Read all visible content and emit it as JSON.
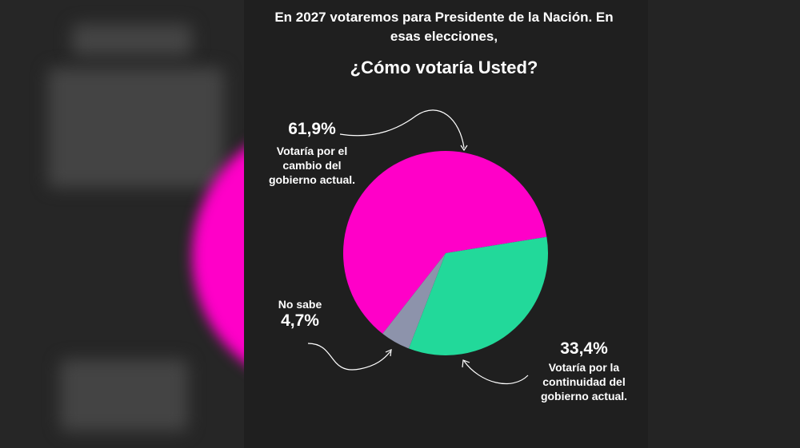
{
  "chart_data": {
    "type": "pie",
    "title": "En 2027 votaremos para Presidente de la Nación. En esas elecciones,",
    "subtitle": "¿Cómo votaría Usted?",
    "categories": [
      "Votaría por el cambio del gobierno actual.",
      "Votaría por la continuidad del gobierno actual.",
      "No sabe"
    ],
    "values": [
      61.9,
      33.4,
      4.7
    ],
    "value_labels": [
      "61,9%",
      "33,4%",
      "4,7%"
    ],
    "colors": [
      "#ff00c8",
      "#22d99a",
      "#8d93ab"
    ]
  }
}
